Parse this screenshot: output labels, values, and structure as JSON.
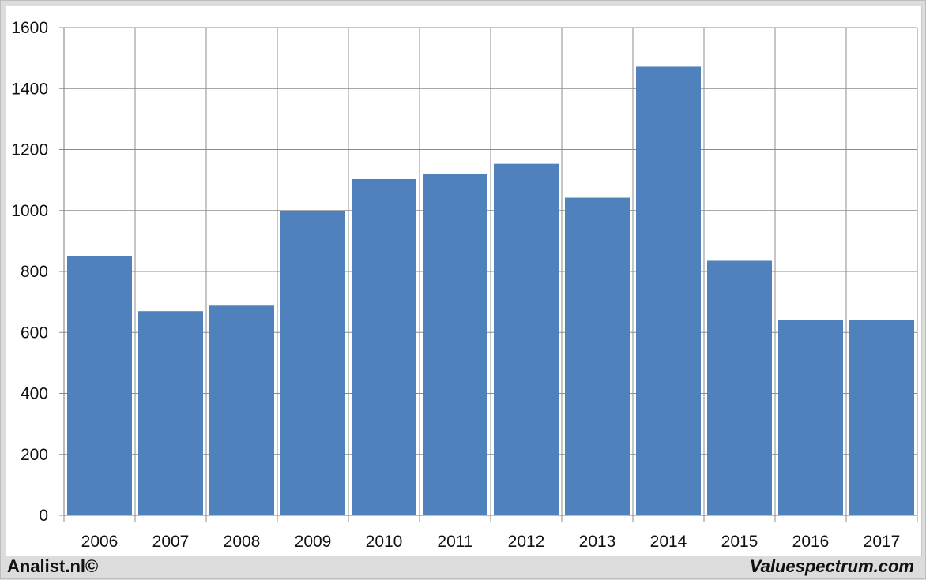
{
  "chart_data": {
    "type": "bar",
    "categories": [
      "2006",
      "2007",
      "2008",
      "2009",
      "2010",
      "2011",
      "2012",
      "2013",
      "2014",
      "2015",
      "2016",
      "2017"
    ],
    "values": [
      850,
      670,
      688,
      998,
      1103,
      1120,
      1153,
      1042,
      1472,
      835,
      642,
      642
    ],
    "ylim": [
      0,
      1600
    ],
    "yticks": [
      0,
      200,
      400,
      600,
      800,
      1000,
      1200,
      1400,
      1600
    ],
    "grid": true,
    "bar_color": "#4f81bd"
  },
  "footer": {
    "left": "Analist.nl©",
    "right": "Valuespectrum.com"
  }
}
